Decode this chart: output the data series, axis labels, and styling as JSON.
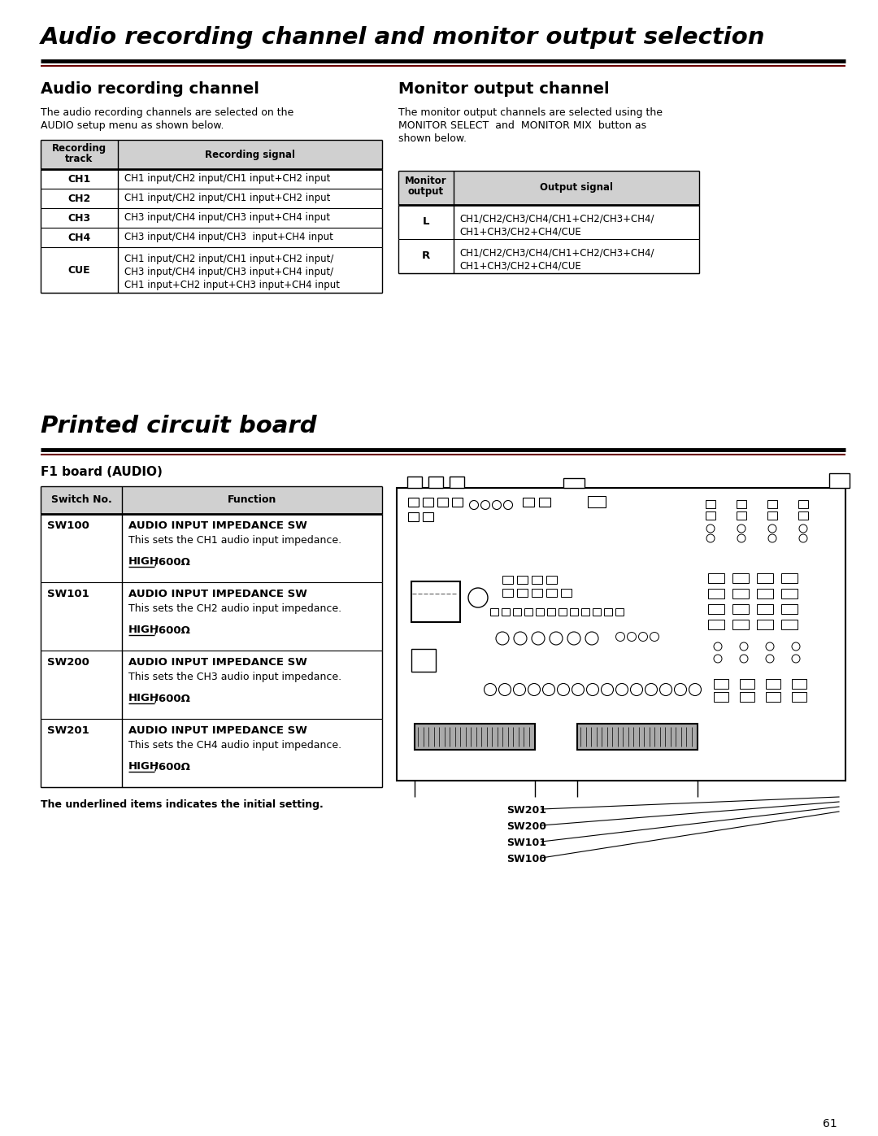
{
  "main_title": "Audio recording channel and monitor output selection",
  "section1_title": "Audio recording channel",
  "section1_body1": "The audio recording channels are selected on the",
  "section1_body2": "AUDIO setup menu as shown below.",
  "section2_title": "Monitor output channel",
  "section2_body1": "The monitor output channels are selected using the",
  "section2_body2": "MONITOR SELECT  and  MONITOR MIX  button as",
  "section2_body3": "shown below.",
  "section3_title": "Printed circuit board",
  "section3_sub": "F1 board (AUDIO)",
  "rec_table_headers": [
    "Recording\ntrack",
    "Recording signal"
  ],
  "rec_table_rows": [
    [
      "CH1",
      "CH1 input/CH2 input/CH1 input+CH2 input"
    ],
    [
      "CH2",
      "CH1 input/CH2 input/CH1 input+CH2 input"
    ],
    [
      "CH3",
      "CH3 input/CH4 input/CH3 input+CH4 input"
    ],
    [
      "CH4",
      "CH3 input/CH4 input/CH3  input+CH4 input"
    ],
    [
      "CUE",
      "CH1 input/CH2 input/CH1 input+CH2 input/\nCH3 input/CH4 input/CH3 input+CH4 input/\nCH1 input+CH2 input+CH3 input+CH4 input"
    ]
  ],
  "mon_table_headers": [
    "Monitor\noutput",
    "Output signal"
  ],
  "mon_table_rows": [
    [
      "L",
      "CH1/CH2/CH3/CH4/CH1+CH2/CH3+CH4/\nCH1+CH3/CH2+CH4/CUE"
    ],
    [
      "R",
      "CH1/CH2/CH3/CH4/CH1+CH2/CH3+CH4/\nCH1+CH3/CH2+CH4/CUE"
    ]
  ],
  "sw_table_headers": [
    "Switch No.",
    "Function"
  ],
  "sw_table_rows": [
    [
      "SW100",
      "AUDIO INPUT IMPEDANCE SW",
      "This sets the CH1 audio input impedance.",
      "HIGH",
      "/600Ω"
    ],
    [
      "SW101",
      "AUDIO INPUT IMPEDANCE SW",
      "This sets the CH2 audio input impedance.",
      "HIGH",
      "/600Ω"
    ],
    [
      "SW200",
      "AUDIO INPUT IMPEDANCE SW",
      "This sets the CH3 audio input impedance.",
      "HIGH",
      "/600Ω"
    ],
    [
      "SW201",
      "AUDIO INPUT IMPEDANCE SW",
      "This sets the CH4 audio input impedance.",
      "HIGH",
      "/600Ω"
    ]
  ],
  "footer_note": "The underlined items indicates the initial setting.",
  "page_number": "61",
  "bg_color": "#ffffff",
  "text_color": "#000000",
  "table_header_bg": "#d0d0d0",
  "rule_color1": "#000000",
  "rule_color2": "#6b0000"
}
